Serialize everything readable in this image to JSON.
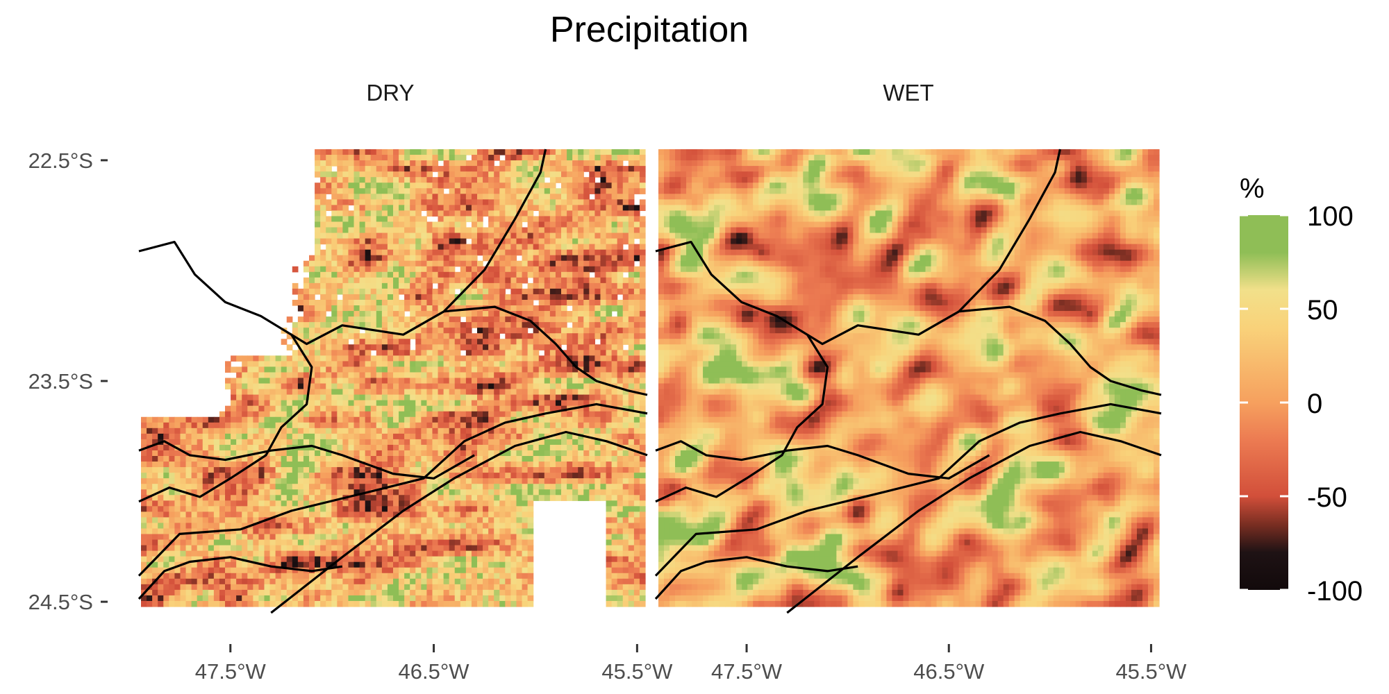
{
  "chart_data": {
    "type": "heatmap",
    "title": "Precipitation",
    "panels": [
      {
        "name": "DRY",
        "x_ticks": [
          "47.5°W",
          "46.5°W",
          "45.5°W"
        ]
      },
      {
        "name": "WET",
        "x_ticks": [
          "47.5°W",
          "46.5°W",
          "45.5°W"
        ]
      }
    ],
    "x_tick_values": [
      -47.5,
      -46.5,
      -45.5
    ],
    "y_ticks": [
      "22.5°S",
      "23.5°S",
      "24.5°S"
    ],
    "y_tick_values": [
      -22.5,
      -23.5,
      -24.5
    ],
    "xlim": [
      -47.95,
      -45.45
    ],
    "ylim": [
      -24.55,
      -22.45
    ],
    "legend": {
      "title": "%",
      "labels": [
        "100",
        "50",
        "0",
        "-50",
        "-100"
      ],
      "values": [
        100,
        50,
        0,
        -50,
        -100
      ],
      "range": [
        -100,
        100
      ],
      "colors": [
        {
          "value": -100,
          "color": "#120a0b"
        },
        {
          "value": -80,
          "color": "#1e1214"
        },
        {
          "value": -65,
          "color": "#7a2e22"
        },
        {
          "value": -50,
          "color": "#d24f3a"
        },
        {
          "value": -20,
          "color": "#ec7b52"
        },
        {
          "value": 0,
          "color": "#f6a05e"
        },
        {
          "value": 40,
          "color": "#f9d27a"
        },
        {
          "value": 60,
          "color": "#f2e08a"
        },
        {
          "value": 80,
          "color": "#8fbe56"
        },
        {
          "value": 100,
          "color": "#8fbe56"
        }
      ]
    }
  }
}
